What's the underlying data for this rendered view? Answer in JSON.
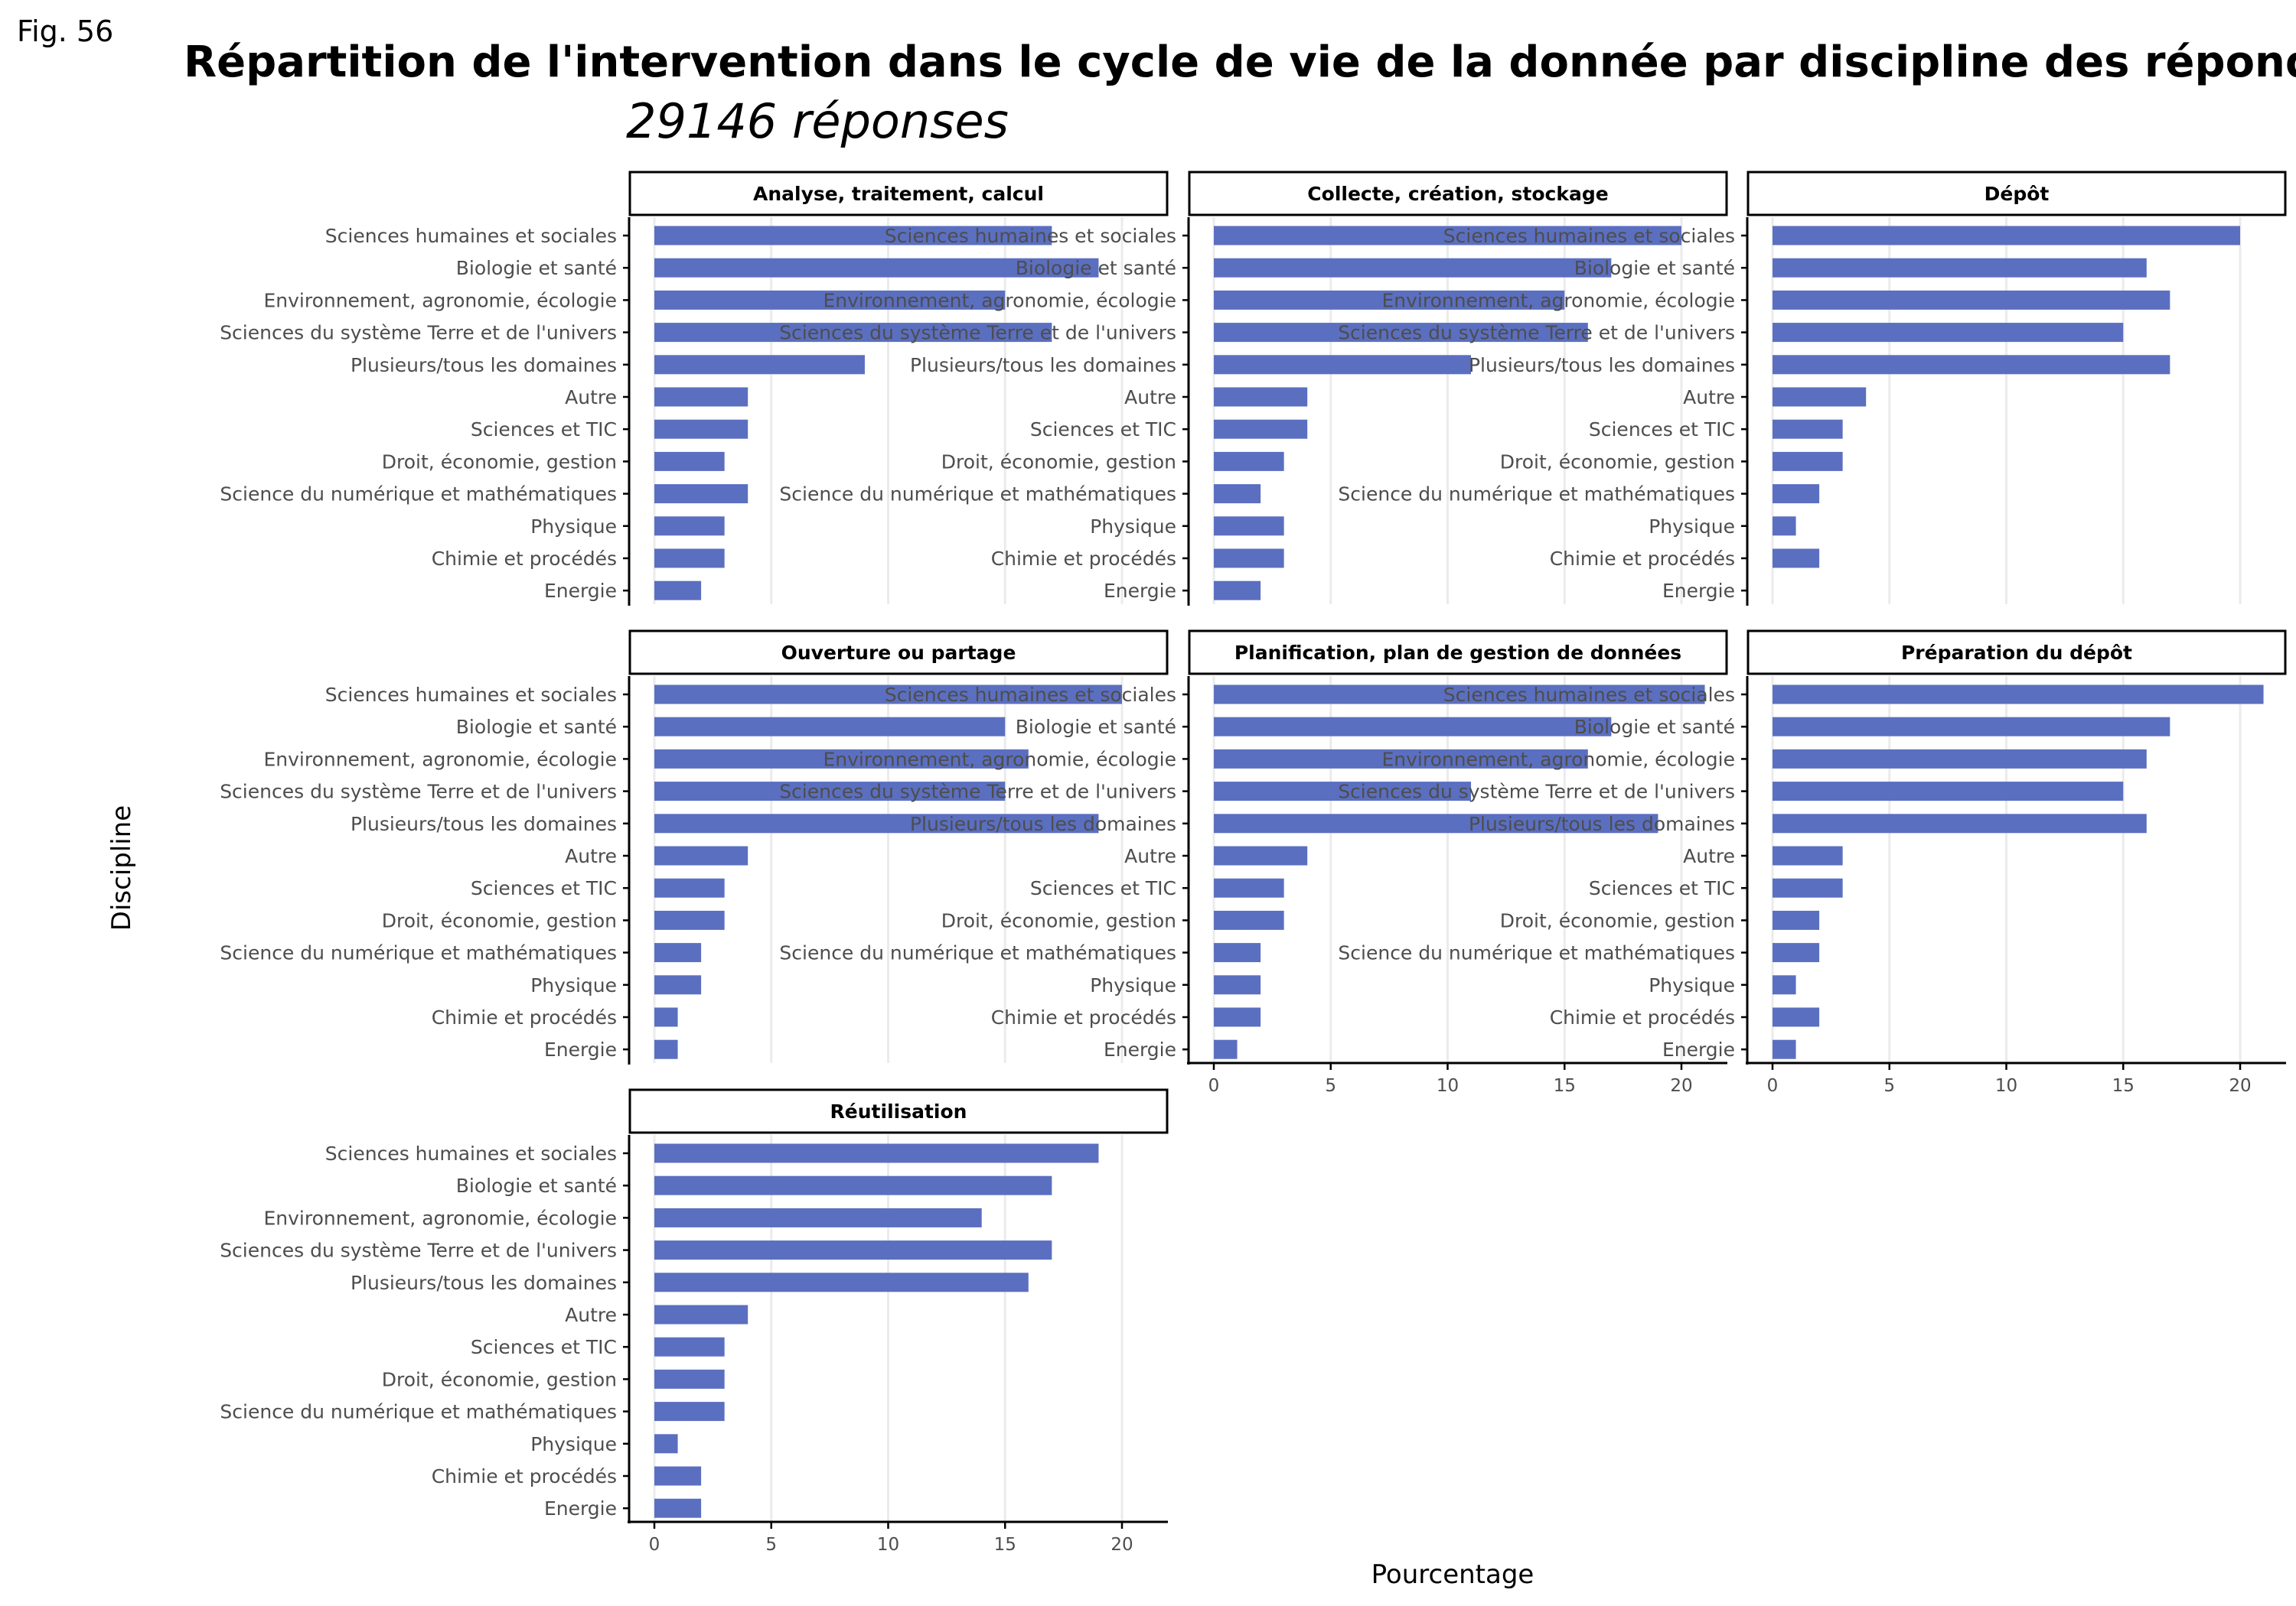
{
  "figure": {
    "label": "Fig. 56",
    "title": "Répartition de l'intervention dans le cycle de vie de la donnée par discipline des répondant(e)s",
    "subtitle": "29146 réponses"
  },
  "colors": {
    "bar": "#5b6fc0",
    "grid": "#ebebeb",
    "axis": "#000000",
    "tick_text": "#4d4d4d"
  },
  "chart_data": {
    "type": "bar",
    "orientation": "horizontal",
    "faceted": true,
    "xlabel": "Pourcentage",
    "ylabel": "Discipline",
    "xlim": [
      0,
      21.5
    ],
    "xticks": [
      0,
      5,
      10,
      15,
      20
    ],
    "grid": true,
    "categories": [
      "Sciences humaines et sociales",
      "Biologie et santé",
      "Environnement, agronomie, écologie",
      "Sciences du système Terre et de l'univers",
      "Plusieurs/tous les domaines",
      "Autre",
      "Sciences et TIC",
      "Droit, économie, gestion",
      "Science du numérique et mathématiques",
      "Physique",
      "Chimie et procédés",
      "Energie"
    ],
    "panels": [
      {
        "name": "Analyse, traitement, calcul",
        "values": [
          17,
          19,
          15,
          17,
          9,
          4,
          4,
          3,
          4,
          3,
          3,
          2
        ]
      },
      {
        "name": "Collecte, création, stockage",
        "values": [
          20,
          17,
          15,
          16,
          11,
          4,
          4,
          3,
          2,
          3,
          3,
          2
        ]
      },
      {
        "name": "Dépôt",
        "values": [
          20,
          16,
          17,
          15,
          17,
          4,
          3,
          3,
          2,
          1,
          2,
          0
        ]
      },
      {
        "name": "Ouverture ou partage",
        "values": [
          20,
          15,
          16,
          15,
          19,
          4,
          3,
          3,
          2,
          2,
          1,
          1
        ]
      },
      {
        "name": "Planification, plan de gestion de données",
        "values": [
          21,
          17,
          16,
          11,
          19,
          4,
          3,
          3,
          2,
          2,
          2,
          1
        ]
      },
      {
        "name": "Préparation du dépôt",
        "values": [
          21,
          17,
          16,
          15,
          16,
          3,
          3,
          2,
          2,
          1,
          2,
          1
        ]
      },
      {
        "name": "Réutilisation",
        "values": [
          19,
          17,
          14,
          17,
          16,
          4,
          3,
          3,
          3,
          1,
          2,
          2
        ]
      }
    ]
  }
}
